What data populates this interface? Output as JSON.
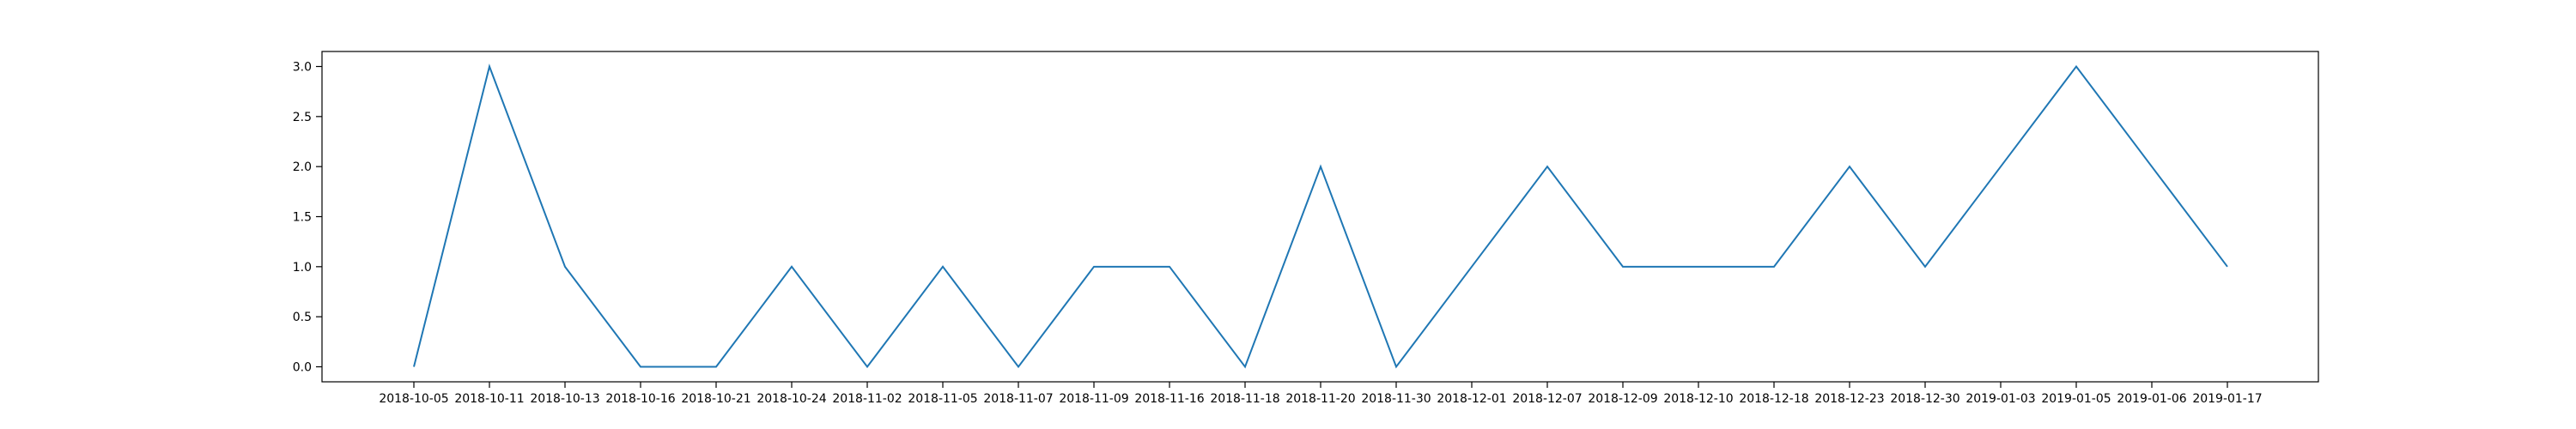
{
  "chart_data": {
    "type": "line",
    "title": "",
    "xlabel": "",
    "ylabel": "",
    "categories": [
      "2018-10-05",
      "2018-10-11",
      "2018-10-13",
      "2018-10-16",
      "2018-10-21",
      "2018-10-24",
      "2018-11-02",
      "2018-11-05",
      "2018-11-07",
      "2018-11-09",
      "2018-11-16",
      "2018-11-18",
      "2018-11-20",
      "2018-11-30",
      "2018-12-01",
      "2018-12-07",
      "2018-12-09",
      "2018-12-10",
      "2018-12-18",
      "2018-12-23",
      "2018-12-30",
      "2019-01-03",
      "2019-01-05",
      "2019-01-06",
      "2019-01-17"
    ],
    "series": [
      {
        "values": [
          0,
          3,
          1,
          0,
          0,
          1,
          0,
          1,
          0,
          1,
          1,
          0,
          2,
          0,
          1,
          2,
          1,
          1,
          1,
          2,
          1,
          2,
          3,
          2,
          1
        ]
      }
    ],
    "ylim": [
      -0.15,
      3.15
    ],
    "yticks": [
      0.0,
      0.5,
      1.0,
      1.5,
      2.0,
      2.5,
      3.0
    ],
    "ytick_labels": [
      "0.0",
      "0.5",
      "1.0",
      "1.5",
      "2.0",
      "2.5",
      "3.0"
    ],
    "line_color": "#1f77b4",
    "grid": false,
    "legend": "none"
  }
}
